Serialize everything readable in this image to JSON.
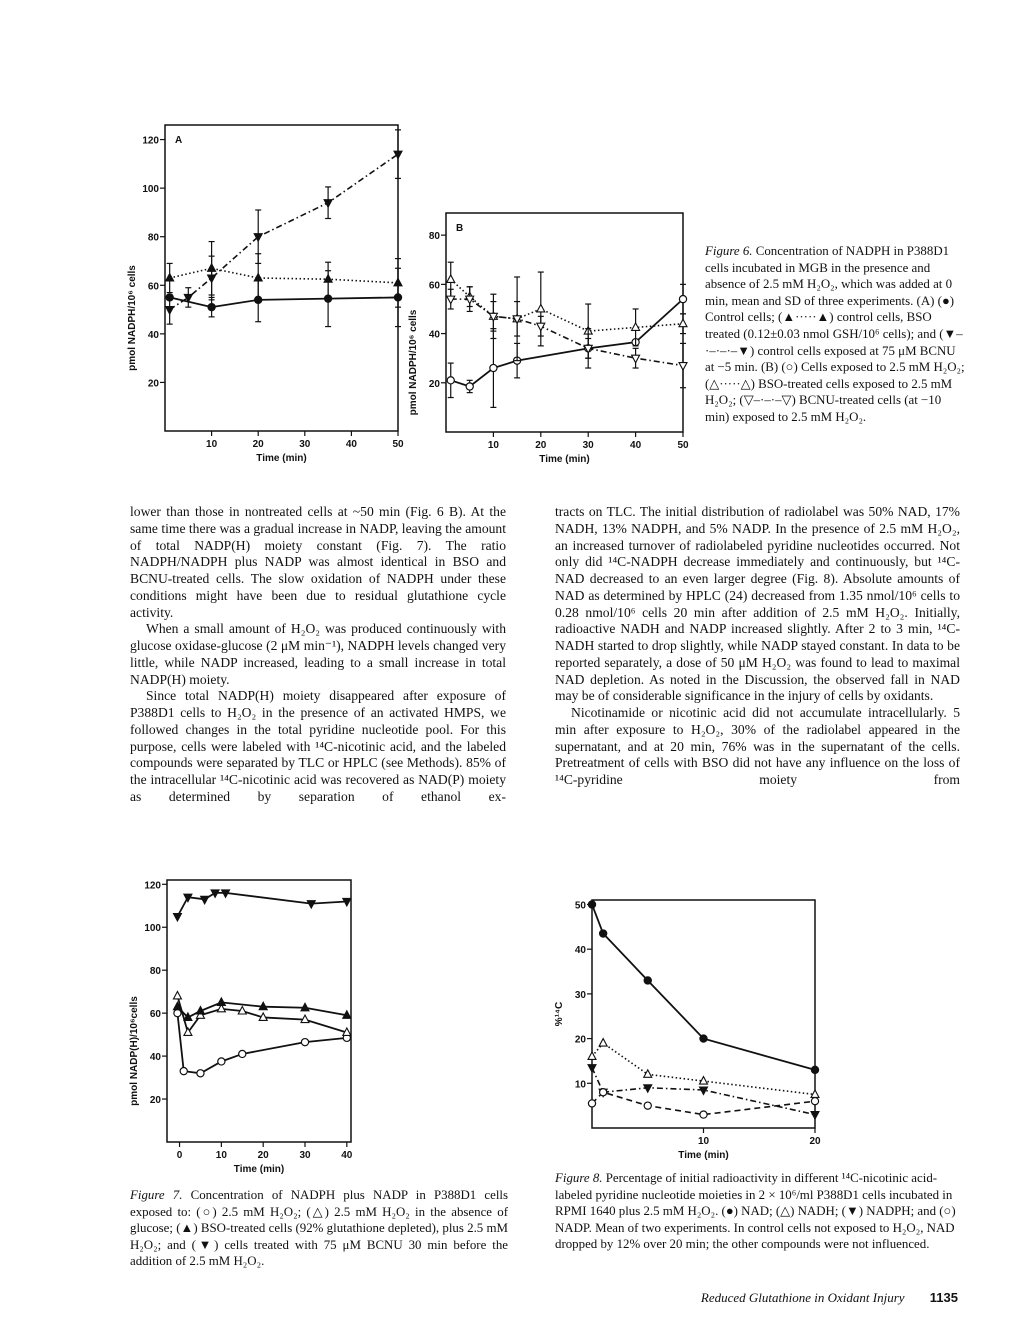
{
  "body": {
    "left": [
      "lower than those in nontreated cells at ~50 min (Fig. 6 B). At the same time there was a gradual increase in NADP, leaving the amount of total NADP(H) moiety constant (Fig. 7). The ratio NADPH/NADPH plus NADP was almost identical in BSO and BCNU-treated cells. The slow oxidation of NADPH under these conditions might have been due to residual glutathione cycle activity.",
      "When a small amount of H₂O₂ was produced continuously with glucose oxidase-glucose (2 μM min⁻¹), NADPH levels changed very little, while NADP increased, leading to a small increase in total NADP(H) moiety.",
      "Since total NADP(H) moiety disappeared after exposure of P388D1 cells to H₂O₂ in the presence of an activated HMPS, we followed changes in the total pyridine nucleotide pool. For this purpose, cells were labeled with ¹⁴C-nicotinic acid, and the labeled compounds were separated by TLC or HPLC (see Methods). 85% of the intracellular ¹⁴C-nicotinic acid was recovered as NAD(P) moiety as determined by separation of ethanol ex-"
    ],
    "right": [
      "tracts on TLC. The initial distribution of radiolabel was 50% NAD, 17% NADH, 13% NADPH, and 5% NADP. In the presence of 2.5 mM H₂O₂, an increased turnover of radiolabeled pyridine nucleotides occurred. Not only did ¹⁴C-NADPH decrease immediately and continuously, but ¹⁴C-NAD decreased to an even larger degree (Fig. 8). Absolute amounts of NAD as determined by HPLC (24) decreased from 1.35 nmol/10⁶ cells to 0.28 nmol/10⁶ cells 20 min after addition of 2.5 mM H₂O₂. Initially, radioactive NADH and NADP increased slightly. After 2 to 3 min, ¹⁴C-NADH started to drop slightly, while NADP stayed constant. In data to be reported separately, a dose of 50 μM H₂O₂ was found to lead to maximal NAD depletion. As noted in the Discussion, the observed fall in NAD may be of considerable significance in the injury of cells by oxidants.",
      "Nicotinamide or nicotinic acid did not accumulate intracellularly. 5 min after exposure to H₂O₂, 30% of the radiolabel appeared in the supernatant, and at 20 min, 76% was in the supernatant of the cells. Pretreatment of cells with BSO did not have any influence on the loss of ¹⁴C-pyridine moiety from"
    ]
  },
  "captions": {
    "fig6": {
      "label": "Figure 6.",
      "text": " Concentration of NADPH in P388D1 cells incubated in MGB in the presence and absence of 2.5 mM H₂O₂, which was added at 0 min, mean and SD of three experiments. (A) (●) Control cells; (▲·····▲) control cells, BSO treated (0.12±0.03 nmol GSH/10⁶ cells); and (▼–·–·–·–▼) control cells exposed at 75 μM BCNU at −5 min. (B) (○) Cells exposed to 2.5 mM H₂O₂; (△·····△) BSO-treated cells exposed to 2.5 mM H₂O₂; (▽–·–·–▽) BCNU-treated cells (at −10 min) exposed to 2.5 mM H₂O₂."
    },
    "fig7": {
      "label": "Figure 7.",
      "text": " Concentration of NADPH plus NADP in P388D1 cells exposed to: (○) 2.5 mM H₂O₂; (△) 2.5 mM H₂O₂ in the absence of glucose; (▲) BSO-treated cells (92% glutathione depleted), plus 2.5 mM H₂O₂; and (▼) cells treated with 75 μM BCNU 30 min before the addition of 2.5 mM H₂O₂."
    },
    "fig8": {
      "label": "Figure 8.",
      "text": " Percentage of initial radioactivity in different ¹⁴C-nicotinic acid-labeled pyridine nucleotide moieties in 2 × 10⁶/ml P388D1 cells incubated in RPMI 1640 plus 2.5 mM H₂O₂. (●) NAD; (△) NADH; (▼) NADPH; and (○) NADP. Mean of two experiments. In control cells not exposed to H₂O₂, NAD dropped by 12% over 20 min; the other compounds were not influenced."
    }
  },
  "footer": {
    "title": "Reduced Glutathione in Oxidant Injury",
    "page": "1135"
  },
  "chart_data": [
    {
      "type": "line",
      "panel": "A",
      "xlabel": "Time (min)",
      "ylabel": "pmol NADPH/10⁶ cells",
      "xlim": [
        0,
        50
      ],
      "ylim": [
        0,
        126
      ],
      "xticks": [
        "10",
        "20",
        "30",
        "40",
        "50"
      ],
      "yticks": [
        "20",
        "40",
        "60",
        "80",
        "100",
        "120"
      ],
      "series": [
        {
          "marker": "filled-circle",
          "line": "solid",
          "x": [
            1,
            10,
            20,
            35,
            50
          ],
          "y": [
            55,
            51,
            54,
            54.5,
            55
          ],
          "sd": [
            1,
            4,
            9,
            11.5,
            12
          ]
        },
        {
          "marker": "filled-triangle-up",
          "line": "dotted",
          "x": [
            1,
            10,
            20,
            35,
            50
          ],
          "y": [
            63,
            67,
            63,
            62.5,
            61
          ],
          "sd": [
            6,
            11,
            10,
            7,
            10
          ]
        },
        {
          "marker": "filled-triangle-down",
          "line": "dash-dot",
          "x": [
            1,
            5,
            10,
            20,
            35,
            50
          ],
          "y": [
            50,
            55,
            63,
            80,
            94,
            114
          ],
          "sd": [
            6,
            4,
            9,
            11,
            6.5,
            10
          ]
        }
      ]
    },
    {
      "type": "line",
      "panel": "B",
      "xlabel": "Time (min)",
      "ylabel": "pmol NADPH/10⁶ cells",
      "xlim": [
        0,
        50
      ],
      "ylim": [
        0,
        89
      ],
      "xticks": [
        "10",
        "20",
        "30",
        "40",
        "50"
      ],
      "yticks": [
        "20",
        "40",
        "60",
        "80"
      ],
      "series": [
        {
          "marker": "open-circle",
          "line": "solid",
          "x": [
            1,
            5,
            10,
            15,
            30,
            40,
            50
          ],
          "y": [
            21,
            18.5,
            26,
            29,
            34,
            36.5,
            54
          ],
          "sd": [
            7,
            2.5,
            16,
            7,
            4,
            0,
            6
          ]
        },
        {
          "marker": "open-triangle-up",
          "line": "dotted",
          "x": [
            1,
            5,
            10,
            15,
            20,
            30,
            40,
            50
          ],
          "y": [
            62,
            55,
            47,
            46,
            50,
            41,
            42.5,
            44
          ],
          "sd": [
            7,
            4,
            9,
            17,
            15,
            11,
            7.5,
            4
          ]
        },
        {
          "marker": "open-triangle-down",
          "line": "dash-dot",
          "x": [
            1,
            5,
            10,
            15,
            20,
            30,
            40,
            50
          ],
          "y": [
            54,
            54,
            47,
            46,
            43,
            34,
            30,
            27
          ],
          "sd": [
            4,
            5,
            6,
            7,
            4,
            8,
            4,
            9
          ]
        }
      ]
    },
    {
      "type": "line",
      "xlabel": "Time (min)",
      "ylabel": "pmol NADP(H)/10⁶cells",
      "xlim": [
        -3,
        41
      ],
      "ylim": [
        0,
        122
      ],
      "xticks": [
        "0",
        "10",
        "20",
        "30",
        "40"
      ],
      "yticks": [
        "20",
        "40",
        "60",
        "80",
        "100",
        "120"
      ],
      "series": [
        {
          "marker": "open-circle",
          "line": "solid",
          "x": [
            -0.5,
            1,
            5,
            10,
            15,
            30,
            40
          ],
          "y": [
            60,
            33,
            32,
            37.5,
            41,
            46.5,
            48.5
          ]
        },
        {
          "marker": "open-triangle-up",
          "line": "solid",
          "x": [
            -0.5,
            2,
            5,
            10,
            15,
            20,
            30,
            40
          ],
          "y": [
            68,
            51,
            59,
            62,
            61,
            58,
            57,
            51
          ]
        },
        {
          "marker": "filled-triangle-up",
          "line": "solid",
          "x": [
            -0.5,
            2,
            5,
            10,
            20,
            30,
            40
          ],
          "y": [
            63,
            58,
            61,
            65,
            63,
            62.5,
            59
          ]
        },
        {
          "marker": "filled-triangle-down",
          "line": "solid",
          "x": [
            -0.5,
            2,
            6,
            8.5,
            11,
            31.5,
            40
          ],
          "y": [
            105,
            114,
            113,
            116,
            116,
            111,
            112
          ]
        }
      ]
    },
    {
      "type": "line",
      "xlabel": "Time (min)",
      "ylabel": "%¹⁴C",
      "xlim": [
        0,
        20
      ],
      "ylim": [
        0,
        51
      ],
      "xticks": [
        "10",
        "20"
      ],
      "yticks": [
        "10",
        "20",
        "30",
        "40",
        "50"
      ],
      "series": [
        {
          "marker": "filled-circle",
          "line": "solid",
          "x": [
            0,
            1,
            5,
            10,
            20
          ],
          "y": [
            50,
            43.5,
            33,
            20,
            13
          ]
        },
        {
          "marker": "open-triangle-up",
          "line": "dotted",
          "x": [
            0,
            1,
            5,
            10,
            20
          ],
          "y": [
            16,
            19,
            12,
            10.5,
            7.5
          ]
        },
        {
          "marker": "filled-triangle-down",
          "line": "dash-dot",
          "x": [
            0,
            1,
            5,
            10,
            20
          ],
          "y": [
            13.5,
            8,
            9,
            8.5,
            3
          ]
        },
        {
          "marker": "open-circle",
          "line": "dashed",
          "x": [
            0,
            1,
            5,
            10,
            20
          ],
          "y": [
            5.5,
            8,
            5,
            3,
            6
          ]
        }
      ]
    }
  ]
}
